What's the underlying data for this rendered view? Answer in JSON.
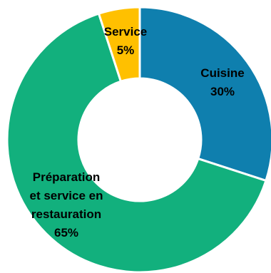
{
  "chart_data": {
    "type": "pie",
    "donut": true,
    "title": "",
    "series": [
      {
        "label": "Cuisine",
        "value": 30,
        "value_label": "30%",
        "color": "#0f7fae"
      },
      {
        "label": "Préparation et service en restauration",
        "value": 65,
        "value_label": "65%",
        "color": "#12b07d"
      },
      {
        "label": "Service",
        "value": 5,
        "value_label": "5%",
        "color": "#ffc000"
      }
    ],
    "legend": "none"
  }
}
